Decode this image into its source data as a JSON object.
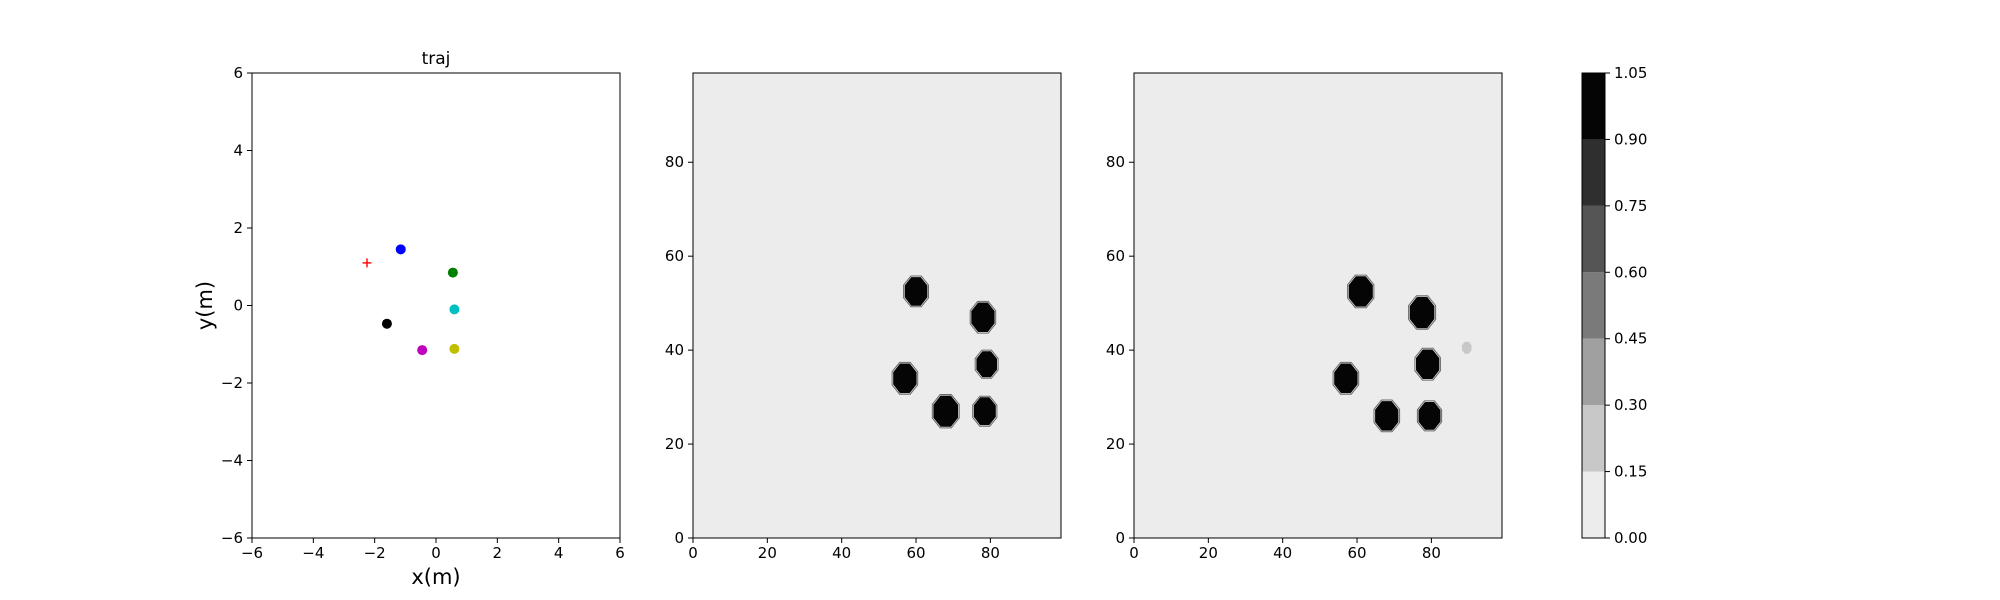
{
  "chart_data": [
    {
      "type": "scatter",
      "title": "traj",
      "xlabel": "x(m)",
      "ylabel": "y(m)",
      "xlim": [
        -6,
        6
      ],
      "ylim": [
        -6,
        6
      ],
      "xticks": [
        -6,
        -4,
        -2,
        0,
        2,
        4,
        6
      ],
      "yticks": [
        -6,
        -4,
        -2,
        0,
        2,
        4,
        6
      ],
      "grid": false,
      "points": [
        {
          "x": -1.15,
          "y": 1.45,
          "color": "#0000ff",
          "marker": "circle"
        },
        {
          "x": 0.55,
          "y": 0.85,
          "color": "#008000",
          "marker": "circle"
        },
        {
          "x": 0.6,
          "y": -0.1,
          "color": "#00bfbf",
          "marker": "circle"
        },
        {
          "x": -1.6,
          "y": -0.47,
          "color": "#000000",
          "marker": "circle"
        },
        {
          "x": -0.45,
          "y": -1.15,
          "color": "#bf00bf",
          "marker": "circle"
        },
        {
          "x": 0.6,
          "y": -1.12,
          "color": "#bfbf00",
          "marker": "circle"
        },
        {
          "x": -2.25,
          "y": 1.1,
          "color": "#ff0000",
          "marker": "plus"
        }
      ]
    },
    {
      "type": "heatmap",
      "xlim": [
        0,
        99
      ],
      "ylim": [
        0,
        99
      ],
      "xticks": [
        0,
        20,
        40,
        60,
        80
      ],
      "yticks": [
        0,
        20,
        40,
        60,
        80
      ],
      "background_value": 0.05,
      "blobs": [
        {
          "x": 60,
          "y": 52.5,
          "radius": 3.3,
          "value": 1.0
        },
        {
          "x": 78,
          "y": 47,
          "radius": 3.4,
          "value": 1.0
        },
        {
          "x": 79,
          "y": 37,
          "radius": 3.0,
          "value": 1.0
        },
        {
          "x": 57,
          "y": 34,
          "radius": 3.4,
          "value": 1.0
        },
        {
          "x": 68,
          "y": 27,
          "radius": 3.6,
          "value": 1.0
        },
        {
          "x": 78.5,
          "y": 27,
          "radius": 3.2,
          "value": 1.0
        }
      ]
    },
    {
      "type": "heatmap",
      "xlim": [
        0,
        99
      ],
      "ylim": [
        0,
        99
      ],
      "xticks": [
        0,
        20,
        40,
        60,
        80
      ],
      "yticks": [
        0,
        20,
        40,
        60,
        80
      ],
      "background_value": 0.05,
      "blobs": [
        {
          "x": 61,
          "y": 52.5,
          "radius": 3.5,
          "value": 1.0
        },
        {
          "x": 77.5,
          "y": 48,
          "radius": 3.6,
          "value": 1.0
        },
        {
          "x": 79,
          "y": 37,
          "radius": 3.4,
          "value": 1.0
        },
        {
          "x": 57,
          "y": 34,
          "radius": 3.4,
          "value": 1.0
        },
        {
          "x": 68,
          "y": 26,
          "radius": 3.4,
          "value": 1.0
        },
        {
          "x": 79.5,
          "y": 26,
          "radius": 3.2,
          "value": 1.0
        },
        {
          "x": 89.5,
          "y": 40.5,
          "radius": 1.4,
          "value": 0.2
        }
      ]
    }
  ],
  "colorbar": {
    "levels": [
      0.0,
      0.15,
      0.3,
      0.45,
      0.6,
      0.75,
      0.9,
      1.05
    ],
    "tick_labels": [
      "0.00",
      "0.15",
      "0.30",
      "0.45",
      "0.60",
      "0.75",
      "0.90",
      "1.05"
    ],
    "colors": [
      "#ececec",
      "#c8c8c8",
      "#a0a0a0",
      "#7a7a7a",
      "#555555",
      "#2f2f2f",
      "#050505"
    ]
  }
}
